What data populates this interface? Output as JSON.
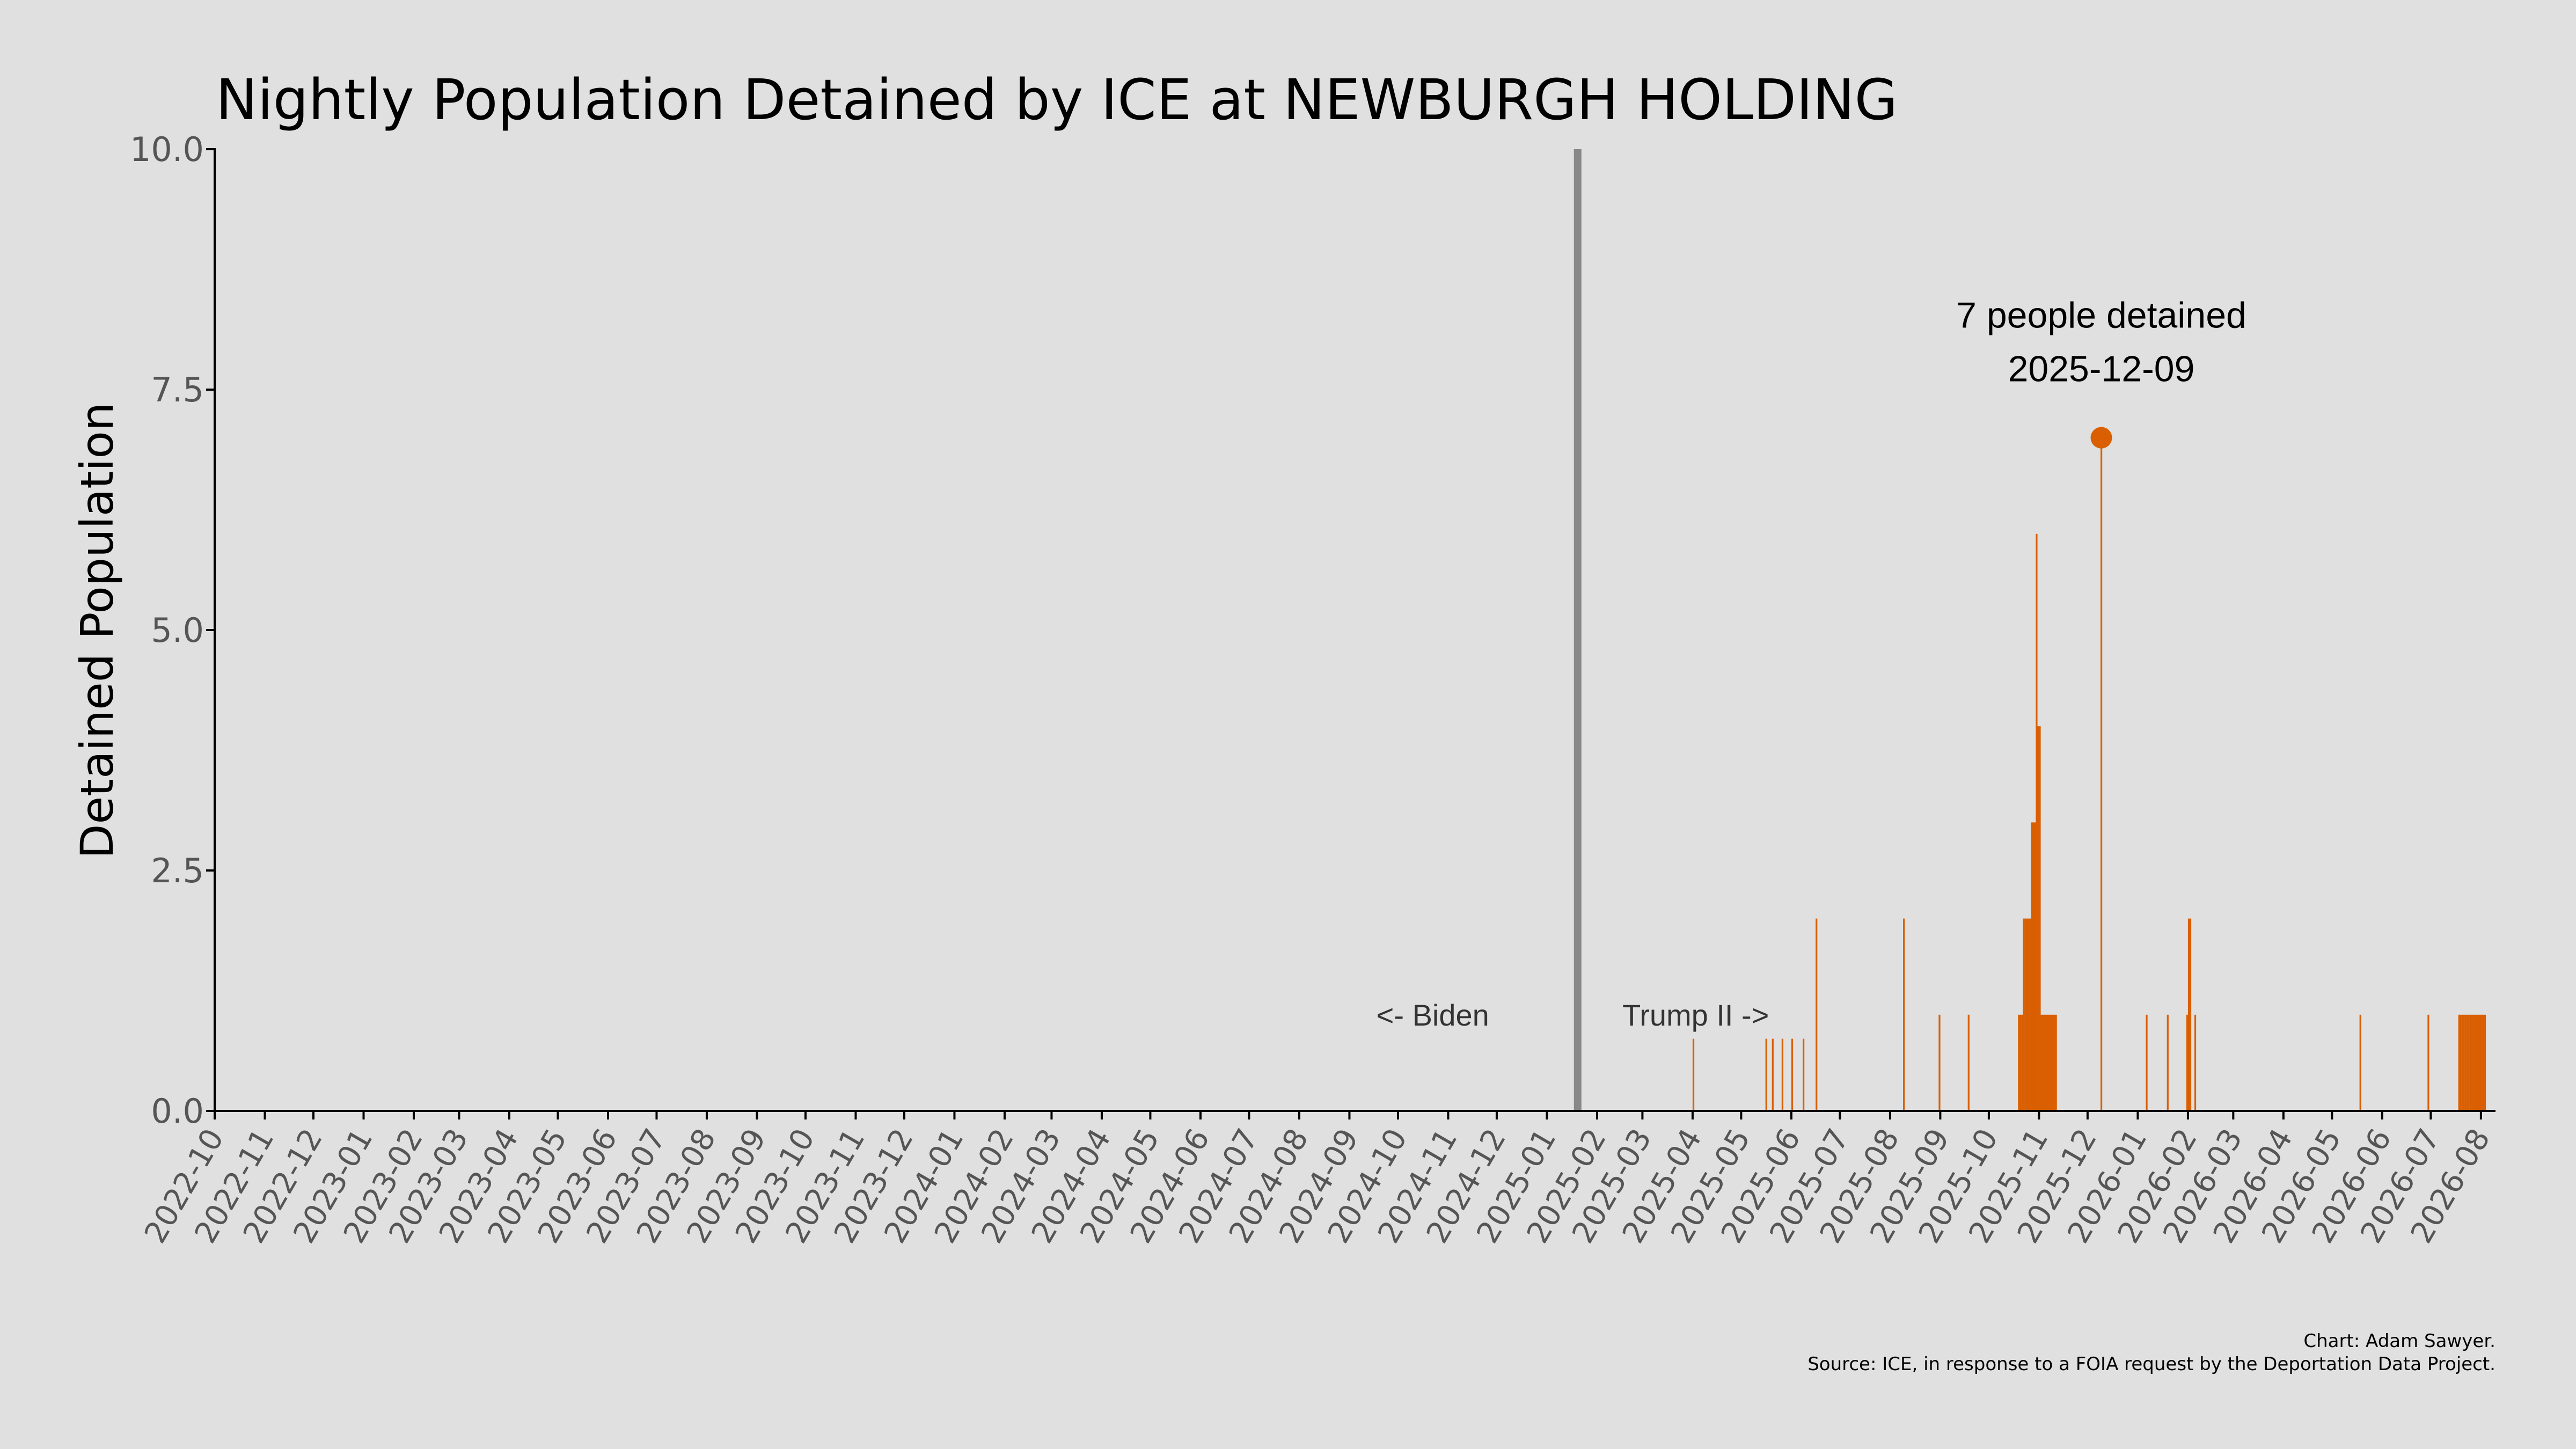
{
  "chart_data": {
    "type": "bar",
    "title": "Nightly Population Detained by ICE at NEWBURGH HOLDING",
    "ylabel": "Detained Population",
    "xlabel": "",
    "ylim": [
      0,
      10
    ],
    "xlim": [
      "2022-10-01",
      "2026-08-10"
    ],
    "y_ticks": [
      "0.0",
      "2.5",
      "5.0",
      "7.5",
      "10.0"
    ],
    "x_ticks": [
      "2022-10",
      "2022-11",
      "2022-12",
      "2023-01",
      "2023-02",
      "2023-03",
      "2023-04",
      "2023-05",
      "2023-06",
      "2023-07",
      "2023-08",
      "2023-09",
      "2023-10",
      "2023-11",
      "2023-12",
      "2024-01",
      "2024-02",
      "2024-03",
      "2024-04",
      "2024-05",
      "2024-06",
      "2024-07",
      "2024-08",
      "2024-09",
      "2024-10",
      "2024-11",
      "2024-12",
      "2025-01",
      "2025-02",
      "2025-03",
      "2025-04",
      "2025-05",
      "2025-06",
      "2025-07",
      "2025-08",
      "2025-09",
      "2025-10",
      "2025-11",
      "2025-12",
      "2026-01",
      "2026-02",
      "2026-03",
      "2026-04",
      "2026-05",
      "2026-06",
      "2026-07",
      "2026-08"
    ],
    "grid": false,
    "bar_color": "#d95f02",
    "divider": {
      "date": "2025-01-20",
      "color": "#888888"
    },
    "era_labels": {
      "left": "<- Biden",
      "right": "Trump II ->"
    },
    "points": [
      {
        "date": "2025-04-01",
        "value": 0.75
      },
      {
        "date": "2025-05-16",
        "value": 0.75
      },
      {
        "date": "2025-05-20",
        "value": 0.75
      },
      {
        "date": "2025-05-26",
        "value": 0.75
      },
      {
        "date": "2025-06-01",
        "value": 0.75
      },
      {
        "date": "2025-06-08",
        "value": 0.75
      },
      {
        "date": "2025-06-16",
        "value": 2
      },
      {
        "date": "2025-08-09",
        "value": 2
      },
      {
        "date": "2025-08-31",
        "value": 1
      },
      {
        "date": "2025-09-18",
        "value": 1
      },
      {
        "date": "2025-10-19",
        "value": 1
      },
      {
        "date": "2025-10-20",
        "value": 1
      },
      {
        "date": "2025-10-21",
        "value": 1
      },
      {
        "date": "2025-10-22",
        "value": 2
      },
      {
        "date": "2025-10-23",
        "value": 2
      },
      {
        "date": "2025-10-24",
        "value": 2
      },
      {
        "date": "2025-10-25",
        "value": 2
      },
      {
        "date": "2025-10-26",
        "value": 2
      },
      {
        "date": "2025-10-27",
        "value": 3
      },
      {
        "date": "2025-10-28",
        "value": 3
      },
      {
        "date": "2025-10-29",
        "value": 3
      },
      {
        "date": "2025-10-30",
        "value": 6
      },
      {
        "date": "2025-10-31",
        "value": 4
      },
      {
        "date": "2025-11-01",
        "value": 4
      },
      {
        "date": "2025-11-02",
        "value": 1
      },
      {
        "date": "2025-11-03",
        "value": 1
      },
      {
        "date": "2025-11-04",
        "value": 1
      },
      {
        "date": "2025-11-05",
        "value": 1
      },
      {
        "date": "2025-11-06",
        "value": 1
      },
      {
        "date": "2025-11-07",
        "value": 1
      },
      {
        "date": "2025-11-08",
        "value": 1
      },
      {
        "date": "2025-11-09",
        "value": 1
      },
      {
        "date": "2025-11-10",
        "value": 1
      },
      {
        "date": "2025-11-11",
        "value": 1
      },
      {
        "date": "2025-12-09",
        "value": 7
      },
      {
        "date": "2026-01-06",
        "value": 1
      },
      {
        "date": "2026-01-19",
        "value": 1
      },
      {
        "date": "2026-01-31",
        "value": 1
      },
      {
        "date": "2026-02-01",
        "value": 2
      },
      {
        "date": "2026-02-02",
        "value": 2
      },
      {
        "date": "2026-02-05",
        "value": 1
      },
      {
        "date": "2026-05-18",
        "value": 1
      },
      {
        "date": "2026-06-29",
        "value": 1
      },
      {
        "date": "2026-07-18",
        "value": 1
      },
      {
        "date": "2026-07-19",
        "value": 1
      },
      {
        "date": "2026-07-20",
        "value": 1
      },
      {
        "date": "2026-07-21",
        "value": 1
      },
      {
        "date": "2026-07-22",
        "value": 1
      },
      {
        "date": "2026-07-23",
        "value": 1
      },
      {
        "date": "2026-07-24",
        "value": 1
      },
      {
        "date": "2026-07-25",
        "value": 1
      },
      {
        "date": "2026-07-26",
        "value": 1
      },
      {
        "date": "2026-07-27",
        "value": 1
      },
      {
        "date": "2026-07-28",
        "value": 1
      },
      {
        "date": "2026-07-29",
        "value": 1
      },
      {
        "date": "2026-07-30",
        "value": 1
      },
      {
        "date": "2026-07-31",
        "value": 1
      },
      {
        "date": "2026-08-01",
        "value": 1
      },
      {
        "date": "2026-08-02",
        "value": 1
      },
      {
        "date": "2026-08-03",
        "value": 1
      }
    ],
    "peak": {
      "date": "2025-12-09",
      "value": 7,
      "label": "7 people detained",
      "date_label": "2025-12-09"
    },
    "credits": {
      "line1": "Chart: Adam Sawyer.",
      "line2": "Source: ICE, in response to a FOIA request by the Deportation Data Project."
    }
  }
}
